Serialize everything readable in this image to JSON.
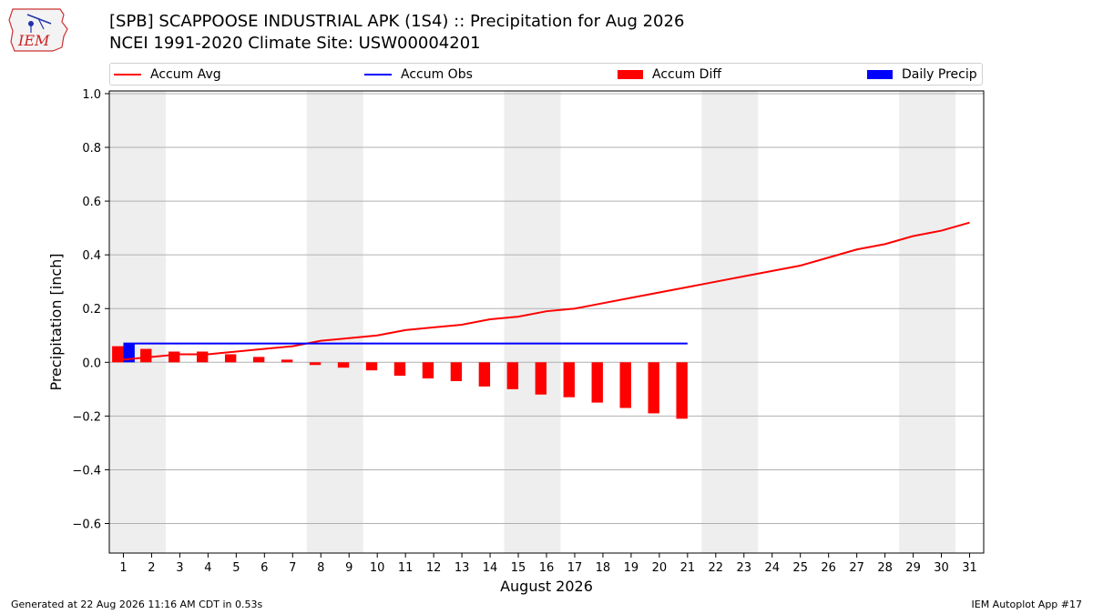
{
  "header": {
    "title_line1": "[SPB] SCAPPOOSE INDUSTRIAL APK (1S4) :: Precipitation for Aug 2026",
    "title_line2": "NCEI 1991-2020 Climate Site: USW00004201",
    "logo_text": "IEM"
  },
  "legend": [
    {
      "label": "Accum Avg",
      "kind": "line",
      "color": "#ff0000"
    },
    {
      "label": "Accum Obs",
      "kind": "line",
      "color": "#0000ff"
    },
    {
      "label": "Accum Diff",
      "kind": "box",
      "color": "#ff0000"
    },
    {
      "label": "Daily Precip",
      "kind": "box",
      "color": "#0000ff"
    }
  ],
  "footer": {
    "left": "Generated at 22 Aug 2026 11:16 AM CDT in 0.53s",
    "right": "IEM Autoplot App #17"
  },
  "chart_data": {
    "type": "bar",
    "xlabel": "August 2026",
    "ylabel": "Precipitation [inch]",
    "ylim": [
      -0.71,
      1.01
    ],
    "yticks": [
      -0.6,
      -0.4,
      -0.2,
      0.0,
      0.2,
      0.4,
      0.6,
      0.8,
      1.0
    ],
    "ytick_labels": [
      "−0.6",
      "−0.4",
      "−0.2",
      "0.0",
      "0.2",
      "0.4",
      "0.6",
      "0.8",
      "1.0"
    ],
    "x": [
      1,
      2,
      3,
      4,
      5,
      6,
      7,
      8,
      9,
      10,
      11,
      12,
      13,
      14,
      15,
      16,
      17,
      18,
      19,
      20,
      21,
      22,
      23,
      24,
      25,
      26,
      27,
      28,
      29,
      30,
      31
    ],
    "xlim": [
      0.5,
      31.5
    ],
    "grid": true,
    "weekend_bands": [
      [
        0.5,
        2.5
      ],
      [
        7.5,
        9.5
      ],
      [
        14.5,
        16.5
      ],
      [
        21.5,
        23.5
      ],
      [
        28.5,
        30.5
      ]
    ],
    "series": [
      {
        "name": "Accum Avg",
        "type": "line",
        "color": "#ff0000",
        "x": [
          1,
          2,
          3,
          4,
          5,
          6,
          7,
          8,
          9,
          10,
          11,
          12,
          13,
          14,
          15,
          16,
          17,
          18,
          19,
          20,
          21,
          22,
          23,
          24,
          25,
          26,
          27,
          28,
          29,
          30,
          31
        ],
        "values": [
          0.01,
          0.02,
          0.03,
          0.03,
          0.04,
          0.05,
          0.06,
          0.08,
          0.09,
          0.1,
          0.12,
          0.13,
          0.14,
          0.16,
          0.17,
          0.19,
          0.2,
          0.22,
          0.24,
          0.26,
          0.28,
          0.3,
          0.32,
          0.34,
          0.36,
          0.39,
          0.42,
          0.44,
          0.47,
          0.49,
          0.52
        ]
      },
      {
        "name": "Accum Obs",
        "type": "line",
        "color": "#0000ff",
        "x": [
          1,
          2,
          3,
          4,
          5,
          6,
          7,
          8,
          9,
          10,
          11,
          12,
          13,
          14,
          15,
          16,
          17,
          18,
          19,
          20,
          21
        ],
        "values": [
          0.07,
          0.07,
          0.07,
          0.07,
          0.07,
          0.07,
          0.07,
          0.07,
          0.07,
          0.07,
          0.07,
          0.07,
          0.07,
          0.07,
          0.07,
          0.07,
          0.07,
          0.07,
          0.07,
          0.07,
          0.07
        ]
      },
      {
        "name": "Accum Diff",
        "type": "bar",
        "color": "#ff0000",
        "x": [
          1,
          2,
          3,
          4,
          5,
          6,
          7,
          8,
          9,
          10,
          11,
          12,
          13,
          14,
          15,
          16,
          17,
          18,
          19,
          20,
          21
        ],
        "values": [
          0.06,
          0.05,
          0.04,
          0.04,
          0.03,
          0.02,
          0.01,
          -0.01,
          -0.02,
          -0.03,
          -0.05,
          -0.06,
          -0.07,
          -0.09,
          -0.1,
          -0.12,
          -0.13,
          -0.15,
          -0.17,
          -0.19,
          -0.21
        ]
      },
      {
        "name": "Daily Precip",
        "type": "bar",
        "color": "#0000ff",
        "x": [
          1
        ],
        "values": [
          0.07
        ]
      }
    ]
  }
}
